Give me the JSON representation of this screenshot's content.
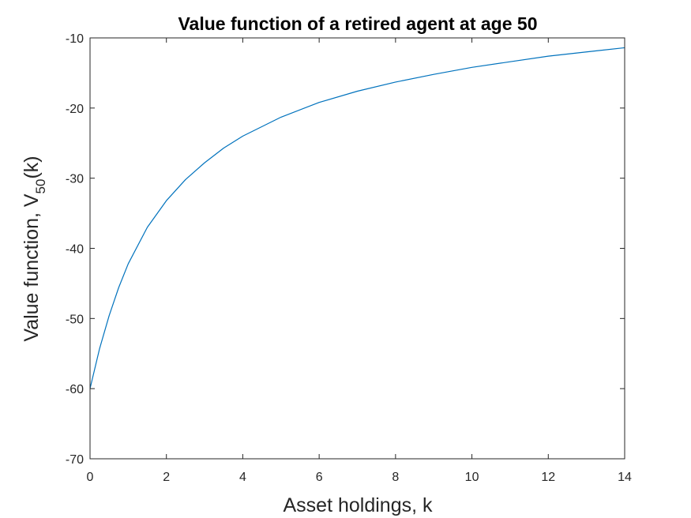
{
  "chart_data": {
    "type": "line",
    "title": "Value function of a retired agent at age 50",
    "xlabel": "Asset holdings, k",
    "ylabel": {
      "main": "Value function, V",
      "subscript": "50",
      "suffix": "(k)"
    },
    "xlim": [
      0,
      14
    ],
    "ylim": [
      -70,
      -10
    ],
    "xticks": [
      0,
      2,
      4,
      6,
      8,
      10,
      12,
      14
    ],
    "yticks": [
      -70,
      -60,
      -50,
      -40,
      -30,
      -20,
      -10
    ],
    "xtick_labels": [
      "0",
      "2",
      "4",
      "6",
      "8",
      "10",
      "12",
      "14"
    ],
    "ytick_labels": [
      "-70",
      "-60",
      "-50",
      "-40",
      "-30",
      "-20",
      "-10"
    ],
    "grid": false,
    "series": [
      {
        "color": "#0072BD",
        "x": [
          0,
          0.25,
          0.5,
          0.75,
          1,
          1.5,
          2,
          2.5,
          3,
          3.5,
          4,
          5,
          6,
          7,
          8,
          9,
          10,
          11,
          12,
          13,
          14
        ],
        "y": [
          -60,
          -54.3,
          -49.6,
          -45.6,
          -42.2,
          -37.0,
          -33.2,
          -30.2,
          -27.8,
          -25.7,
          -24.0,
          -21.3,
          -19.2,
          -17.6,
          -16.3,
          -15.2,
          -14.2,
          -13.4,
          -12.6,
          -12.0,
          -11.4
        ]
      }
    ]
  }
}
